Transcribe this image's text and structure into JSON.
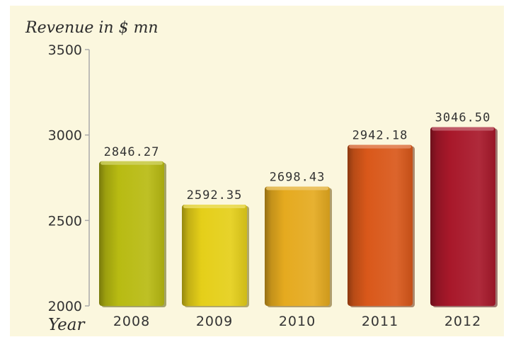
{
  "chart_data": {
    "type": "bar",
    "ylabel": "Revenue in $ mn",
    "xlabel": "Year",
    "categories": [
      "2008",
      "2009",
      "2010",
      "2011",
      "2012"
    ],
    "values": [
      2846.27,
      2592.35,
      2698.43,
      2942.18,
      3046.5
    ],
    "value_labels": [
      "2846.27",
      "2592.35",
      "2698.43",
      "2942.18",
      "3046.50"
    ],
    "ylim": [
      2000,
      3500
    ],
    "yticks": [
      "2000",
      "2500",
      "3000",
      "3500"
    ],
    "grid": false,
    "legend": "none",
    "colors": [
      "#b8bb12",
      "#e5cf19",
      "#e5aa1f",
      "#d9581a",
      "#a8182a"
    ],
    "background": "#fbf7de"
  }
}
